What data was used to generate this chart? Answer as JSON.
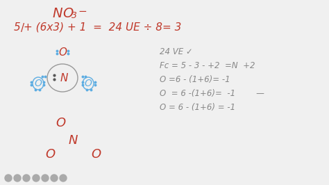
{
  "bg_color": "#f0f0f0",
  "text_color": "#c0392b",
  "dot_color": "#5dade2",
  "dark_dot_color": "#555555",
  "ellipse_color": "#888888",
  "right_text_color": "#888888",
  "right_lines": [
    "24 VE ✓",
    "Fc = 5 - 3 - +2  =N  +2",
    "O =6 - (1+6)= -1",
    "O  = 6 -(1+6)=  -1        —",
    "O = 6 - (1+6) = -1"
  ],
  "icon_color": "#aaaaaa"
}
